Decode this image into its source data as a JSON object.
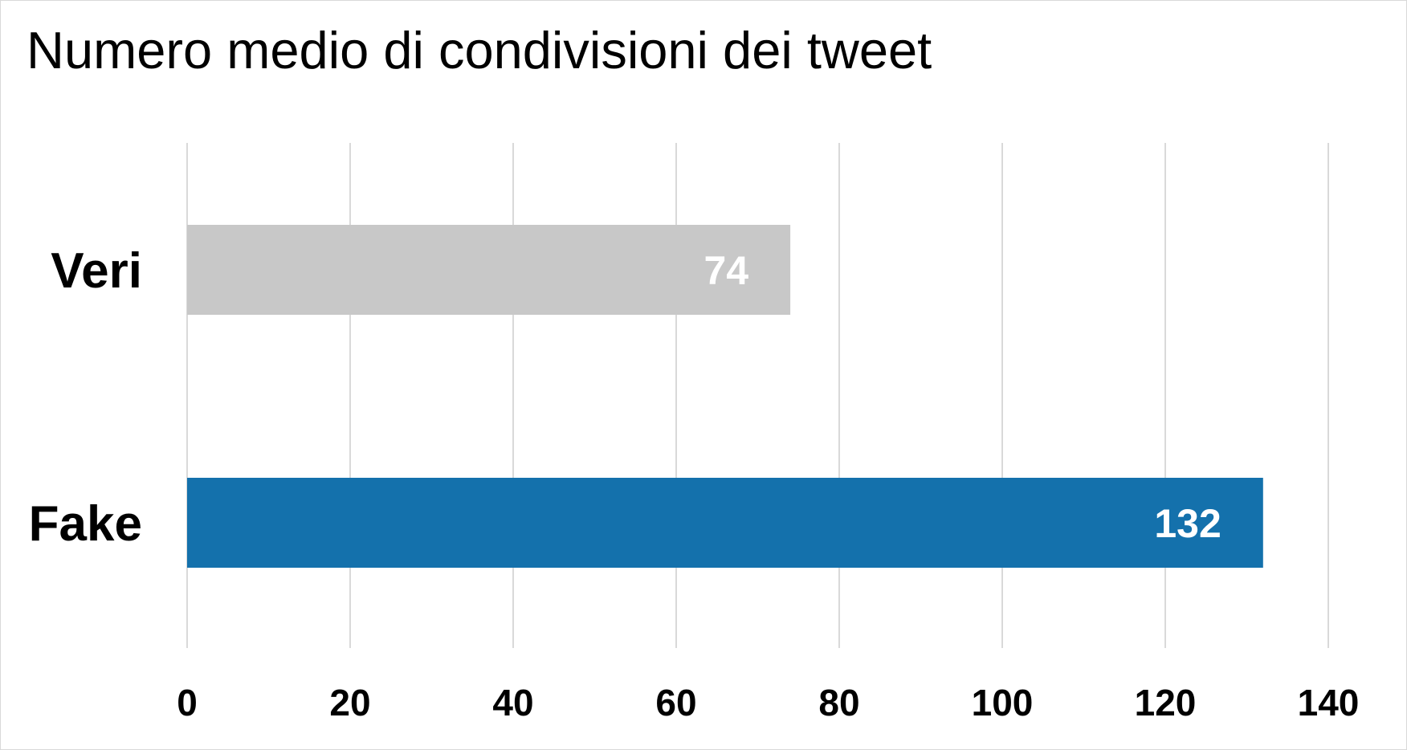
{
  "chart_data": {
    "type": "bar",
    "orientation": "horizontal",
    "title": "Numero medio di condivisioni dei tweet",
    "categories": [
      "Veri",
      "Fake"
    ],
    "values": [
      74,
      132
    ],
    "data_labels": [
      "74",
      "132"
    ],
    "colors": [
      "#c8c8c8",
      "#1471ac"
    ],
    "xlim": [
      0,
      140
    ],
    "x_ticks": [
      0,
      20,
      40,
      60,
      80,
      100,
      120,
      140
    ],
    "x_tick_labels": [
      "0",
      "20",
      "40",
      "60",
      "80",
      "100",
      "120",
      "140"
    ],
    "grid": "vertical",
    "legend": "none",
    "xlabel": "",
    "ylabel": ""
  }
}
